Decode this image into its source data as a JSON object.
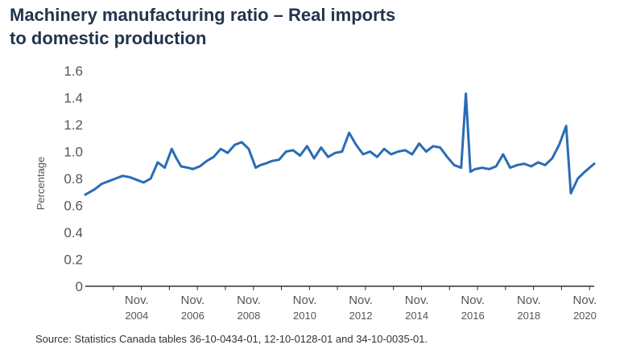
{
  "title_lines": [
    "Machinery manufacturing ratio – Real imports",
    "to domestic production"
  ],
  "source": "Source: Statistics Canada tables 36-10-0434-01, 12-10-0128-01 and 34-10-0035-01.",
  "colors": {
    "line": "#2a6cb5",
    "axis": "#333333",
    "title": "#23344d"
  },
  "chart_data": {
    "type": "line",
    "title": "Machinery manufacturing ratio – Real imports to domestic production",
    "ylabel": "Percentage",
    "xlabel": "",
    "ylim": [
      0,
      1.6
    ],
    "yticks": [
      0,
      0.2,
      0.4,
      0.6,
      0.8,
      1.0,
      1.2,
      1.4,
      1.6
    ],
    "ytick_labels": [
      "0",
      "0.2",
      "0.4",
      "0.6",
      "0.8",
      "1.0",
      "1.2",
      "1.4",
      "1.6"
    ],
    "xlim": [
      "2003-01",
      "2021-03"
    ],
    "xticks": [
      {
        "date": "2004-11",
        "line1": "Nov.",
        "line2": "2004"
      },
      {
        "date": "2006-11",
        "line1": "Nov.",
        "line2": "2006"
      },
      {
        "date": "2008-11",
        "line1": "Nov.",
        "line2": "2008"
      },
      {
        "date": "2010-11",
        "line1": "Nov.",
        "line2": "2010"
      },
      {
        "date": "2012-11",
        "line1": "Nov.",
        "line2": "2012"
      },
      {
        "date": "2014-11",
        "line1": "Nov.",
        "line2": "2014"
      },
      {
        "date": "2016-11",
        "line1": "Nov.",
        "line2": "2016"
      },
      {
        "date": "2018-11",
        "line1": "Nov.",
        "line2": "2018"
      },
      {
        "date": "2020-11",
        "line1": "Nov.",
        "line2": "2020"
      }
    ],
    "grid": false,
    "series": [
      {
        "name": "",
        "x": [
          "2003-01",
          "2003-05",
          "2003-08",
          "2003-11",
          "2004-02",
          "2004-05",
          "2004-08",
          "2004-11",
          "2005-02",
          "2005-05",
          "2005-08",
          "2005-11",
          "2006-02",
          "2006-04",
          "2006-06",
          "2006-09",
          "2006-11",
          "2007-02",
          "2007-05",
          "2007-08",
          "2007-11",
          "2008-02",
          "2008-05",
          "2008-08",
          "2008-11",
          "2009-02",
          "2009-04",
          "2009-06",
          "2009-09",
          "2009-12",
          "2010-03",
          "2010-06",
          "2010-09",
          "2010-12",
          "2011-03",
          "2011-06",
          "2011-09",
          "2011-12",
          "2012-03",
          "2012-06",
          "2012-09",
          "2012-12",
          "2013-03",
          "2013-06",
          "2013-09",
          "2013-12",
          "2014-03",
          "2014-06",
          "2014-09",
          "2014-12",
          "2015-03",
          "2015-06",
          "2015-09",
          "2015-12",
          "2016-03",
          "2016-06",
          "2016-08",
          "2016-10",
          "2016-12",
          "2017-03",
          "2017-06",
          "2017-09",
          "2017-12",
          "2018-03",
          "2018-06",
          "2018-09",
          "2018-12",
          "2019-03",
          "2019-06",
          "2019-09",
          "2019-12",
          "2020-03",
          "2020-05",
          "2020-08",
          "2020-11",
          "2021-03"
        ],
        "y": [
          0.68,
          0.72,
          0.76,
          0.78,
          0.8,
          0.82,
          0.81,
          0.79,
          0.77,
          0.8,
          0.92,
          0.88,
          1.02,
          0.95,
          0.89,
          0.88,
          0.87,
          0.89,
          0.93,
          0.96,
          1.02,
          0.99,
          1.05,
          1.07,
          1.02,
          0.88,
          0.9,
          0.91,
          0.93,
          0.94,
          1.0,
          1.01,
          0.97,
          1.04,
          0.95,
          1.03,
          0.96,
          0.99,
          1.0,
          1.14,
          1.05,
          0.98,
          1.0,
          0.96,
          1.02,
          0.98,
          1.0,
          1.01,
          0.98,
          1.06,
          1.0,
          1.04,
          1.03,
          0.96,
          0.9,
          0.88,
          1.43,
          0.85,
          0.87,
          0.88,
          0.87,
          0.89,
          0.98,
          0.88,
          0.9,
          0.91,
          0.89,
          0.92,
          0.9,
          0.95,
          1.05,
          1.19,
          0.69,
          0.8,
          0.85,
          0.91
        ]
      }
    ]
  }
}
